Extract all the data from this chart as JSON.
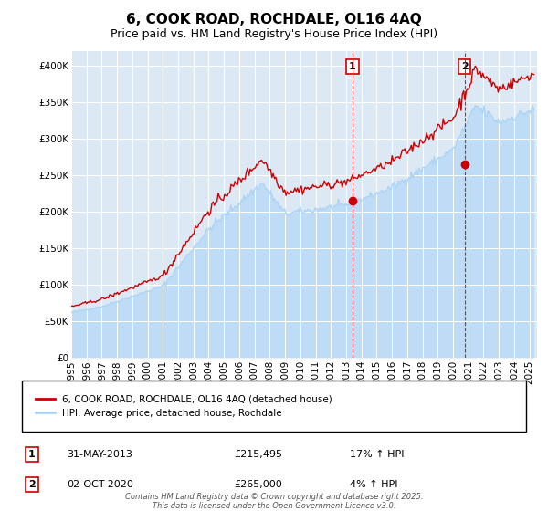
{
  "title": "6, COOK ROAD, ROCHDALE, OL16 4AQ",
  "subtitle": "Price paid vs. HM Land Registry's House Price Index (HPI)",
  "xlim_start": 1995.0,
  "xlim_end": 2025.5,
  "ylim": [
    0,
    420000
  ],
  "yticks": [
    0,
    50000,
    100000,
    150000,
    200000,
    250000,
    300000,
    350000,
    400000
  ],
  "ytick_labels": [
    "£0",
    "£50K",
    "£100K",
    "£150K",
    "£200K",
    "£250K",
    "£300K",
    "£350K",
    "£400K"
  ],
  "xticks": [
    1995,
    1996,
    1997,
    1998,
    1999,
    2000,
    2001,
    2002,
    2003,
    2004,
    2005,
    2006,
    2007,
    2008,
    2009,
    2010,
    2011,
    2012,
    2013,
    2014,
    2015,
    2016,
    2017,
    2018,
    2019,
    2020,
    2021,
    2022,
    2023,
    2024,
    2025
  ],
  "hpi_color": "#aad4f5",
  "price_color": "#cc0000",
  "marker_color": "#cc0000",
  "dashed_line_color": "#cc0000",
  "plot_bg_color": "#dde8f5",
  "legend_label_price": "6, COOK ROAD, ROCHDALE, OL16 4AQ (detached house)",
  "legend_label_hpi": "HPI: Average price, detached house, Rochdale",
  "point1_x": 2013.42,
  "point1_y": 215495,
  "point2_x": 2020.75,
  "point2_y": 265000,
  "point1_label": "1",
  "point2_label": "2",
  "point1_info_num": "1",
  "point1_info_date": "31-MAY-2013",
  "point1_info_price": "£215,495",
  "point1_info_hpi": "17% ↑ HPI",
  "point2_info_num": "2",
  "point2_info_date": "02-OCT-2020",
  "point2_info_price": "£265,000",
  "point2_info_hpi": "4% ↑ HPI",
  "footer": "Contains HM Land Registry data © Crown copyright and database right 2025.\nThis data is licensed under the Open Government Licence v3.0.",
  "title_fontsize": 11,
  "subtitle_fontsize": 9,
  "tick_fontsize": 7.5
}
